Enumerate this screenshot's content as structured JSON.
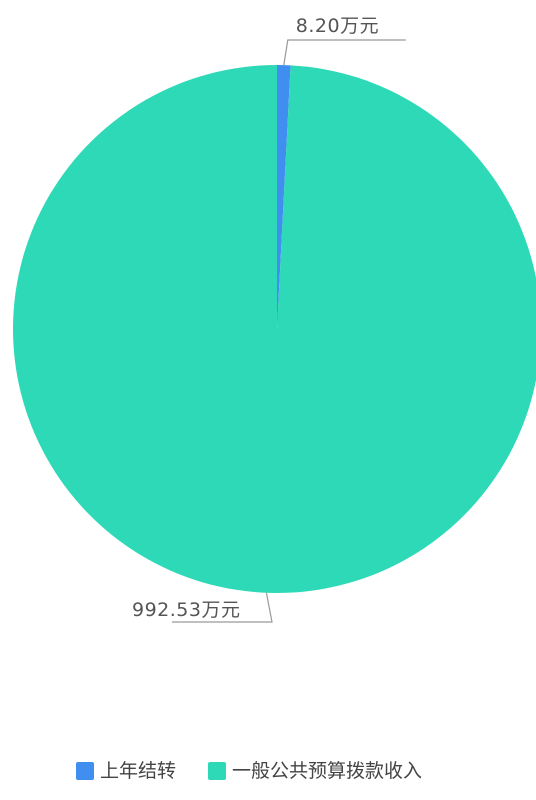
{
  "chart_data": {
    "type": "pie",
    "slices": [
      {
        "name": "上年结转",
        "value": 8.2,
        "label": "8.20万元",
        "color": "#3f8ef0"
      },
      {
        "name": "一般公共预算拨款收入",
        "value": 992.53,
        "label": "992.53万元",
        "color": "#2ed9b8"
      }
    ],
    "unit": "万元",
    "legend_position": "bottom-center",
    "start_angle": "top",
    "direction": "clockwise"
  }
}
